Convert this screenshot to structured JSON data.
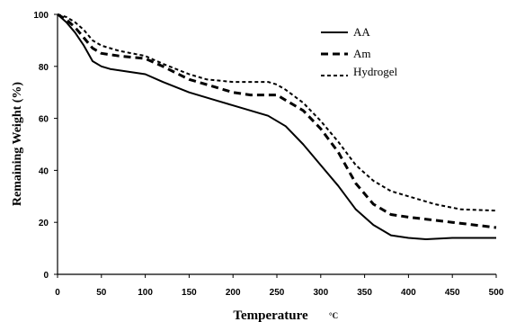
{
  "chart_data": {
    "type": "line",
    "xlabel": "Temperature",
    "xlabel_unit": "°C",
    "ylabel": "Remaining Weight (%)",
    "xlim": [
      0,
      500
    ],
    "ylim": [
      0,
      100
    ],
    "x_ticks": [
      "0",
      "50",
      "100",
      "150",
      "200",
      "250",
      "300",
      "350",
      "400",
      "450",
      "500"
    ],
    "y_ticks": [
      "0",
      "20",
      "40",
      "60",
      "80",
      "100"
    ],
    "grid": false,
    "legend_position": "top-right",
    "series": [
      {
        "name": "AA",
        "line_style": "solid",
        "color": "#000000",
        "x": [
          0,
          10,
          20,
          30,
          40,
          50,
          60,
          80,
          100,
          120,
          150,
          180,
          200,
          220,
          240,
          260,
          280,
          300,
          320,
          340,
          360,
          380,
          400,
          420,
          450,
          500
        ],
        "y": [
          100,
          97,
          93,
          88,
          82,
          80,
          79,
          78,
          77,
          74,
          70,
          67,
          65,
          63,
          61,
          57,
          50,
          42,
          34,
          25,
          19,
          15,
          14,
          13.5,
          14,
          14
        ]
      },
      {
        "name": "Am",
        "line_style": "dashed",
        "color": "#000000",
        "x": [
          0,
          10,
          20,
          30,
          40,
          50,
          70,
          100,
          120,
          150,
          170,
          200,
          220,
          240,
          250,
          260,
          280,
          300,
          320,
          340,
          360,
          380,
          400,
          450,
          500
        ],
        "y": [
          100,
          98,
          95,
          91,
          87,
          85,
          84,
          83,
          80,
          75,
          73,
          70,
          69,
          69,
          69,
          67,
          63,
          56,
          47,
          35,
          27,
          23,
          22,
          20,
          18
        ]
      },
      {
        "name": "Hydrogel",
        "line_style": "dotted",
        "color": "#000000",
        "x": [
          0,
          10,
          20,
          30,
          40,
          50,
          70,
          100,
          120,
          150,
          170,
          200,
          220,
          240,
          250,
          260,
          280,
          300,
          320,
          340,
          360,
          380,
          400,
          430,
          460,
          500
        ],
        "y": [
          100,
          99,
          97,
          94,
          90,
          88,
          86,
          84,
          81,
          77,
          75,
          74,
          74,
          74,
          73,
          71,
          66,
          59,
          51,
          42,
          36,
          32,
          30,
          27,
          25,
          24.5
        ]
      }
    ]
  }
}
